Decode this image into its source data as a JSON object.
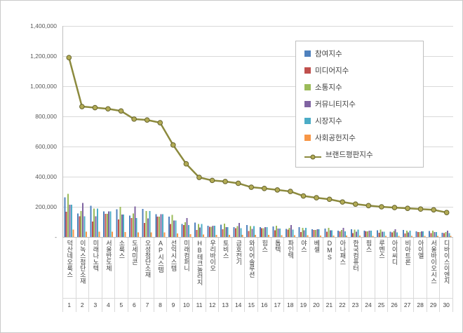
{
  "chart_data": {
    "type": "bar",
    "title": "",
    "grid": true,
    "legend_position": "top-right-inside",
    "ylim": [
      0,
      1400000
    ],
    "ytick_step": 200000,
    "ytick_labels": [
      "-",
      "200,000",
      "400,000",
      "600,000",
      "800,000",
      "1,000,000",
      "1,200,000",
      "1,400,000"
    ],
    "categories": [
      "덕산네오룩스",
      "이녹스첨단소재",
      "미래나노텍",
      "서울반도체",
      "소룩스",
      "도세미콘",
      "오성첨단소재",
      "AP시스템",
      "선익시스템",
      "미래컴퍼니",
      "HB테크놀러지",
      "우리바이오",
      "토비스",
      "금호전기",
      "와이어솔루션",
      "힘스",
      "톱텍",
      "파인텍",
      "야스",
      "베셀",
      "DMS",
      "아나패스",
      "한국컴퓨터",
      "핌스",
      "루멘스",
      "아이씨디",
      "비아트론",
      "아이엘",
      "서울바이오시스",
      "디바이스이엔지"
    ],
    "ranks": [
      "1",
      "2",
      "3",
      "4",
      "5",
      "6",
      "7",
      "8",
      "9",
      "10",
      "11",
      "12",
      "13",
      "14",
      "15",
      "16",
      "17",
      "18",
      "19",
      "20",
      "21",
      "22",
      "23",
      "24",
      "25",
      "26",
      "27",
      "28",
      "29",
      "30"
    ],
    "series": [
      {
        "name": "참여지수",
        "color": "#4F81BD",
        "values": [
          262000,
          156000,
          206000,
          170000,
          184000,
          141000,
          186000,
          152000,
          134000,
          87000,
          95000,
          75000,
          81000,
          64000,
          79000,
          64000,
          69000,
          54000,
          65000,
          52000,
          55000,
          42000,
          52000,
          42000,
          44000,
          35000,
          46000,
          37000,
          40000,
          29000
        ]
      },
      {
        "name": "미디어지수",
        "color": "#C0504D",
        "values": [
          167000,
          138000,
          103000,
          153000,
          117000,
          125000,
          93000,
          136000,
          85000,
          78000,
          47000,
          68000,
          52000,
          57000,
          40000,
          58000,
          44000,
          48000,
          33000,
          47000,
          35000,
          37000,
          26000,
          37000,
          28000,
          31000,
          23000,
          33000,
          25000,
          26000
        ]
      },
      {
        "name": "소통지수",
        "color": "#9BBB59",
        "values": [
          286000,
          173000,
          189000,
          153000,
          201000,
          156000,
          171000,
          136000,
          146000,
          97000,
          87000,
          68000,
          88000,
          71000,
          73000,
          58000,
          75000,
          60000,
          60000,
          47000,
          60000,
          46000,
          48000,
          37000,
          48000,
          39000,
          42000,
          33000,
          43000,
          32000
        ]
      },
      {
        "name": "커뮤니티지수",
        "color": "#8064A2",
        "values": [
          214000,
          225000,
          137000,
          170000,
          150000,
          203000,
          124000,
          152000,
          110000,
          126000,
          63000,
          75000,
          66000,
          93000,
          53000,
          64000,
          56000,
          79000,
          44000,
          52000,
          45000,
          60000,
          35000,
          42000,
          36000,
          51000,
          30000,
          37000,
          32000,
          42000
        ]
      },
      {
        "name": "시장지수",
        "color": "#4BACC6",
        "values": [
          214000,
          138000,
          189000,
          170000,
          150000,
          125000,
          171000,
          152000,
          110000,
          78000,
          87000,
          75000,
          66000,
          57000,
          73000,
          64000,
          56000,
          48000,
          60000,
          52000,
          45000,
          37000,
          48000,
          42000,
          36000,
          31000,
          42000,
          37000,
          32000,
          26000
        ]
      },
      {
        "name": "사회공헌지수",
        "color": "#F79646",
        "values": [
          48000,
          35000,
          34000,
          34000,
          33000,
          31000,
          31000,
          30000,
          24000,
          19000,
          16000,
          15000,
          15000,
          14000,
          13000,
          13000,
          12000,
          12000,
          11000,
          10000,
          10000,
          9000,
          9000,
          8000,
          8000,
          8000,
          8000,
          7000,
          7000,
          6000
        ]
      }
    ],
    "line_series": {
      "name": "브랜드평판지수",
      "color": "#8C8A3E",
      "marker_fill": "#B2AB55",
      "marker_stroke": "#65632C",
      "values": [
        1190000,
        865000,
        858000,
        850000,
        836000,
        782000,
        776000,
        758000,
        610000,
        485000,
        395000,
        375000,
        368000,
        356000,
        330000,
        322000,
        312000,
        302000,
        272000,
        260000,
        250000,
        232000,
        218000,
        208000,
        200000,
        195000,
        190000,
        185000,
        180000,
        162000
      ]
    }
  }
}
